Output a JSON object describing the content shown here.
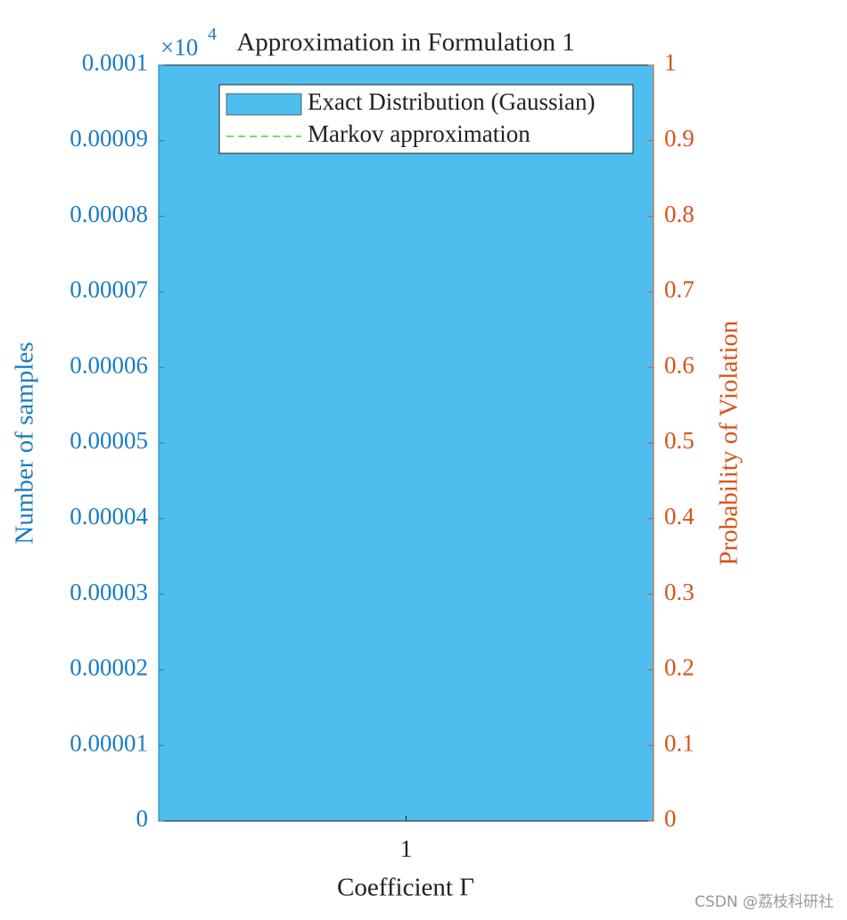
{
  "chart_data": {
    "type": "bar",
    "title": "Approximation in Formulation 1",
    "x_label": "Coefficient Γ",
    "y_label": "Number of samples",
    "y2_label": "Probability of Violation",
    "y_exponent_base": "×10",
    "y_exponent": "4",
    "categories": [
      "1"
    ],
    "series": [
      {
        "name": "Exact Distribution (Gaussian)",
        "color": "#4dbeee",
        "values": [
          0.0001
        ]
      },
      {
        "name": "Markov approximation",
        "color": "#33dd33",
        "values": [
          null
        ],
        "axis": "y2"
      }
    ],
    "ylim": [
      0,
      0.0001
    ],
    "yticks": [
      0,
      1e-05,
      2e-05,
      3e-05,
      4e-05,
      5e-05,
      6e-05,
      7e-05,
      8e-05,
      9e-05,
      0.0001
    ],
    "y2lim": [
      0,
      1
    ],
    "y2ticks": [
      0,
      0.1,
      0.2,
      0.3,
      0.4,
      0.5,
      0.6,
      0.7,
      0.8,
      0.9,
      1
    ],
    "y_color": "#1a7cc1",
    "y2_color": "#d95319",
    "legend": "top",
    "watermark": "CSDN @荔枝科研社"
  }
}
